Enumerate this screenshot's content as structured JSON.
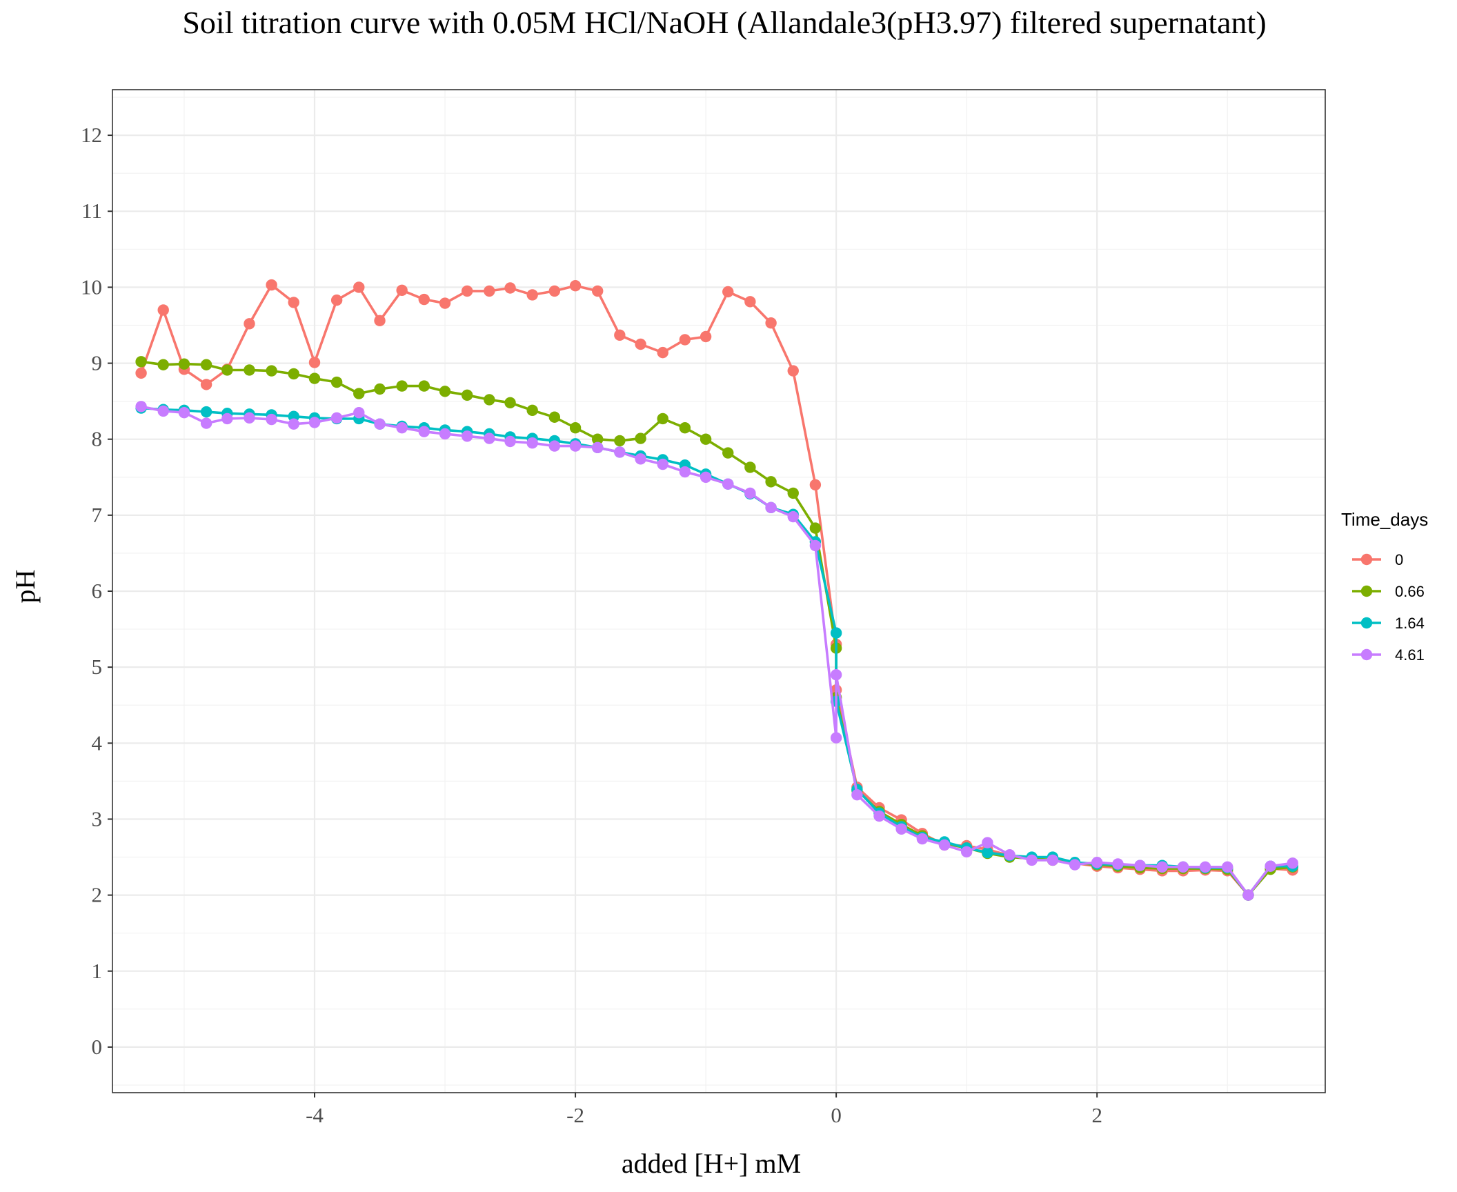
{
  "chart_data": {
    "type": "line",
    "title": "Soil titration curve with 0.05M HCl/NaOH (Allandale3(pH3.97) filtered supernatant)",
    "xlabel": "added [H+] mM",
    "ylabel": "pH",
    "xlim": [
      -5.55,
      3.75
    ],
    "ylim": [
      -0.6,
      12.6
    ],
    "x_ticks": [
      -4,
      -2,
      0,
      2
    ],
    "x_tick_labels": [
      "-4",
      "-2",
      "0",
      "2"
    ],
    "y_ticks": [
      0,
      1,
      2,
      3,
      4,
      5,
      6,
      7,
      8,
      9,
      10,
      11,
      12
    ],
    "y_tick_labels": [
      "0",
      "1",
      "2",
      "3",
      "4",
      "5",
      "6",
      "7",
      "8",
      "9",
      "10",
      "11",
      "12"
    ],
    "grid": true,
    "legend": {
      "title": "Time_days",
      "position": "right"
    },
    "series": [
      {
        "name": "0",
        "color": "#F8766D",
        "x": [
          -5.33,
          -5.16,
          -5.0,
          -4.83,
          -4.67,
          -4.5,
          -4.33,
          -4.16,
          -4.0,
          -3.83,
          -3.66,
          -3.5,
          -3.33,
          -3.16,
          -3.0,
          -2.83,
          -2.66,
          -2.5,
          -2.33,
          -2.16,
          -2.0,
          -1.83,
          -1.66,
          -1.5,
          -1.33,
          -1.16,
          -1.0,
          -0.83,
          -0.66,
          -0.5,
          -0.33,
          -0.16,
          0.0,
          0.0,
          0.16,
          0.33,
          0.5,
          0.66,
          0.83,
          1.0,
          1.16,
          1.33,
          1.5,
          1.66,
          1.83,
          2.0,
          2.16,
          2.33,
          2.5,
          2.66,
          2.83,
          3.0,
          3.16,
          3.33,
          3.5
        ],
        "y": [
          8.87,
          9.7,
          8.92,
          8.72,
          8.92,
          9.52,
          10.03,
          9.8,
          9.01,
          9.83,
          10.0,
          9.56,
          9.96,
          9.84,
          9.79,
          9.95,
          9.95,
          9.99,
          9.9,
          9.95,
          10.02,
          9.95,
          9.37,
          9.25,
          9.14,
          9.31,
          9.35,
          9.94,
          9.81,
          9.53,
          8.9,
          7.4,
          5.3,
          4.7,
          3.42,
          3.15,
          2.99,
          2.81,
          2.66,
          2.65,
          2.6,
          2.52,
          2.48,
          2.46,
          2.42,
          2.38,
          2.36,
          2.34,
          2.32,
          2.32,
          2.33,
          2.32,
          2.0,
          2.35,
          2.33
        ]
      },
      {
        "name": "0.66",
        "color": "#7CAE00",
        "x": [
          -5.33,
          -5.16,
          -5.0,
          -4.83,
          -4.67,
          -4.5,
          -4.33,
          -4.16,
          -4.0,
          -3.83,
          -3.66,
          -3.5,
          -3.33,
          -3.16,
          -3.0,
          -2.83,
          -2.66,
          -2.5,
          -2.33,
          -2.16,
          -2.0,
          -1.83,
          -1.66,
          -1.5,
          -1.33,
          -1.16,
          -1.0,
          -0.83,
          -0.66,
          -0.5,
          -0.33,
          -0.16,
          0.0,
          0.0,
          0.16,
          0.33,
          0.5,
          0.66,
          0.83,
          1.0,
          1.16,
          1.33,
          1.5,
          1.66,
          1.83,
          2.0,
          2.16,
          2.33,
          2.5,
          2.66,
          2.83,
          3.0,
          3.16,
          3.33,
          3.5
        ],
        "y": [
          9.02,
          8.98,
          8.99,
          8.98,
          8.91,
          8.91,
          8.9,
          8.86,
          8.8,
          8.75,
          8.6,
          8.66,
          8.7,
          8.7,
          8.63,
          8.58,
          8.52,
          8.48,
          8.38,
          8.29,
          8.15,
          8.0,
          7.98,
          8.01,
          8.27,
          8.15,
          8.0,
          7.82,
          7.63,
          7.44,
          7.29,
          6.83,
          5.25,
          4.6,
          3.38,
          3.1,
          2.93,
          2.78,
          2.68,
          2.62,
          2.55,
          2.5,
          2.48,
          2.46,
          2.42,
          2.4,
          2.38,
          2.36,
          2.35,
          2.35,
          2.35,
          2.34,
          2.0,
          2.34,
          2.37
        ]
      },
      {
        "name": "1.64",
        "color": "#00BFC4",
        "x": [
          -5.33,
          -5.16,
          -5.0,
          -4.83,
          -4.67,
          -4.5,
          -4.33,
          -4.16,
          -4.0,
          -3.83,
          -3.66,
          -3.5,
          -3.33,
          -3.16,
          -3.0,
          -2.83,
          -2.66,
          -2.5,
          -2.33,
          -2.16,
          -2.0,
          -1.83,
          -1.66,
          -1.5,
          -1.33,
          -1.16,
          -1.0,
          -0.83,
          -0.66,
          -0.5,
          -0.33,
          -0.16,
          0.0,
          0.0,
          0.16,
          0.33,
          0.5,
          0.66,
          0.83,
          1.0,
          1.16,
          1.33,
          1.5,
          1.66,
          1.83,
          2.0,
          2.16,
          2.33,
          2.5,
          2.66,
          2.83,
          3.0,
          3.16,
          3.33,
          3.5
        ],
        "y": [
          8.41,
          8.39,
          8.38,
          8.36,
          8.34,
          8.33,
          8.32,
          8.3,
          8.28,
          8.27,
          8.27,
          8.2,
          8.17,
          8.15,
          8.12,
          8.1,
          8.07,
          8.03,
          8.01,
          7.98,
          7.94,
          7.89,
          7.83,
          7.78,
          7.73,
          7.66,
          7.54,
          7.41,
          7.28,
          7.1,
          7.01,
          6.65,
          5.45,
          4.55,
          3.39,
          3.08,
          2.9,
          2.76,
          2.7,
          2.62,
          2.56,
          2.52,
          2.5,
          2.5,
          2.43,
          2.41,
          2.4,
          2.39,
          2.39,
          2.37,
          2.36,
          2.36,
          2.0,
          2.38,
          2.38
        ]
      },
      {
        "name": "4.61",
        "color": "#C77CFF",
        "x": [
          -5.33,
          -5.16,
          -5.0,
          -4.83,
          -4.67,
          -4.5,
          -4.33,
          -4.16,
          -4.0,
          -3.83,
          -3.66,
          -3.5,
          -3.33,
          -3.16,
          -3.0,
          -2.83,
          -2.66,
          -2.5,
          -2.33,
          -2.16,
          -2.0,
          -1.83,
          -1.66,
          -1.5,
          -1.33,
          -1.16,
          -1.0,
          -0.83,
          -0.66,
          -0.5,
          -0.33,
          -0.16,
          0.0,
          0.0,
          0.16,
          0.33,
          0.5,
          0.66,
          0.83,
          1.0,
          1.16,
          1.33,
          1.5,
          1.66,
          1.83,
          2.0,
          2.16,
          2.33,
          2.5,
          2.66,
          2.83,
          3.0,
          3.16,
          3.33,
          3.5
        ],
        "y": [
          8.43,
          8.37,
          8.35,
          8.21,
          8.27,
          8.28,
          8.26,
          8.2,
          8.22,
          8.28,
          8.35,
          8.2,
          8.15,
          8.1,
          8.07,
          8.04,
          8.01,
          7.97,
          7.95,
          7.91,
          7.91,
          7.89,
          7.83,
          7.74,
          7.67,
          7.57,
          7.5,
          7.41,
          7.29,
          7.1,
          6.98,
          6.6,
          4.07,
          4.9,
          3.32,
          3.04,
          2.87,
          2.74,
          2.66,
          2.57,
          2.69,
          2.53,
          2.46,
          2.46,
          2.4,
          2.43,
          2.41,
          2.39,
          2.37,
          2.37,
          2.37,
          2.37,
          2.0,
          2.38,
          2.42
        ]
      }
    ]
  }
}
